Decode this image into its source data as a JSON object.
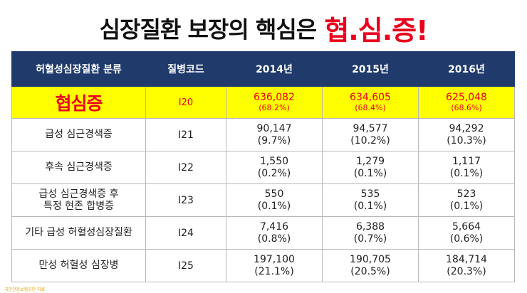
{
  "title": {
    "main": "심장질환 보장의 핵심은",
    "accent": "협.심.증!"
  },
  "table": {
    "headers": [
      "허혈성심장질환 분류",
      "질병코드",
      "2014년",
      "2015년",
      "2016년"
    ],
    "highlight_row": {
      "name": "협심증",
      "code": "I20",
      "cells": [
        {
          "value": "636,082",
          "pct": "(68.2%)"
        },
        {
          "value": "634,605",
          "pct": "(68.4%)"
        },
        {
          "value": "625,048",
          "pct": "(68.6%)"
        }
      ]
    },
    "rows": [
      {
        "name_lines": [
          "급성 심근경색증"
        ],
        "code": "I21",
        "cells": [
          {
            "value": "90,147",
            "pct": "(9.7%)"
          },
          {
            "value": "94,577",
            "pct": "(10.2%)"
          },
          {
            "value": "94,292",
            "pct": "(10.3%)"
          }
        ]
      },
      {
        "name_lines": [
          "후속 심근경색증"
        ],
        "code": "I22",
        "cells": [
          {
            "value": "1,550",
            "pct": "(0.2%)"
          },
          {
            "value": "1,279",
            "pct": "(0.1%)"
          },
          {
            "value": "1,117",
            "pct": "(0.1%)"
          }
        ]
      },
      {
        "name_lines": [
          "급성 심근경색증 후",
          "특정 현존 합병증"
        ],
        "code": "I23",
        "cells": [
          {
            "value": "550",
            "pct": "(0.1%)"
          },
          {
            "value": "535",
            "pct": "(0.1%)"
          },
          {
            "value": "523",
            "pct": "(0.1%)"
          }
        ]
      },
      {
        "name_lines": [
          "기타 급성 허혈성심장질환"
        ],
        "code": "I24",
        "cells": [
          {
            "value": "7,416",
            "pct": "(0.8%)"
          },
          {
            "value": "6,388",
            "pct": "(0.7%)"
          },
          {
            "value": "5,664",
            "pct": "(0.6%)"
          }
        ]
      },
      {
        "name_lines": [
          "만성 허혈성 심장병"
        ],
        "code": "I25",
        "cells": [
          {
            "value": "197,100",
            "pct": "(21.1%)"
          },
          {
            "value": "190,705",
            "pct": "(20.5%)"
          },
          {
            "value": "184,714",
            "pct": "(20.3%)"
          }
        ]
      }
    ]
  },
  "footnote": "국민건강보험공단 자료",
  "colors": {
    "header_bg": "#1f3a6b",
    "highlight_bg": "#ffff00",
    "accent": "#e8001c"
  }
}
